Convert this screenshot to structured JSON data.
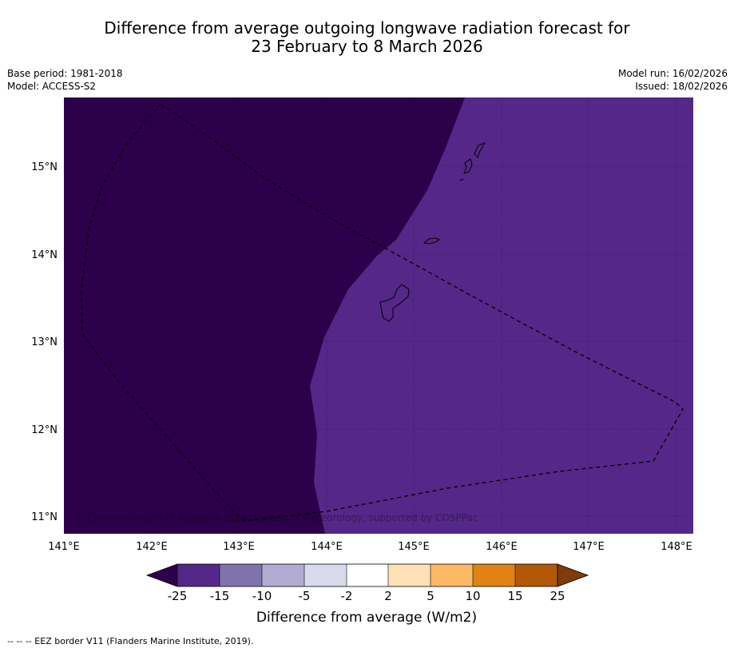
{
  "title": {
    "line1": "Difference from average outgoing longwave radiation forecast for",
    "line2": "23 February to 8 March 2026"
  },
  "meta": {
    "base_period": "Base period: 1981-2018",
    "model": "Model: ACCESS-S2",
    "model_run": "Model run: 16/02/2026",
    "issued": "Issued: 18/02/2026"
  },
  "map": {
    "lat_labels": [
      "15°N",
      "14°N",
      "13°N",
      "12°N",
      "11°N"
    ],
    "lon_labels": [
      "141°E",
      "142°E",
      "143°E",
      "144°E",
      "145°E",
      "146°E",
      "147°E",
      "148°E"
    ],
    "copyright": "© Commonwealth of Australia 2026, Bureau of Meteorology, supported by COSPPac",
    "colors": {
      "dark_region": "#2c004b",
      "light_region": "#542788",
      "coast": "#000000"
    }
  },
  "colorbar": {
    "tick_labels": [
      "-25",
      "-15",
      "-10",
      "-5",
      "-2",
      "2",
      "5",
      "10",
      "15",
      "25"
    ],
    "colors": [
      "#2d004b",
      "#542788",
      "#8073ac",
      "#b2abd2",
      "#d8daeb",
      "#ffffff",
      "#fee0b6",
      "#fdb863",
      "#e08214",
      "#b35806",
      "#7f3b08"
    ],
    "title": "Difference from average (W/m2)"
  },
  "footnote": "--  --  -- EEZ border V11 (Flanders Marine Institute, 2019)."
}
